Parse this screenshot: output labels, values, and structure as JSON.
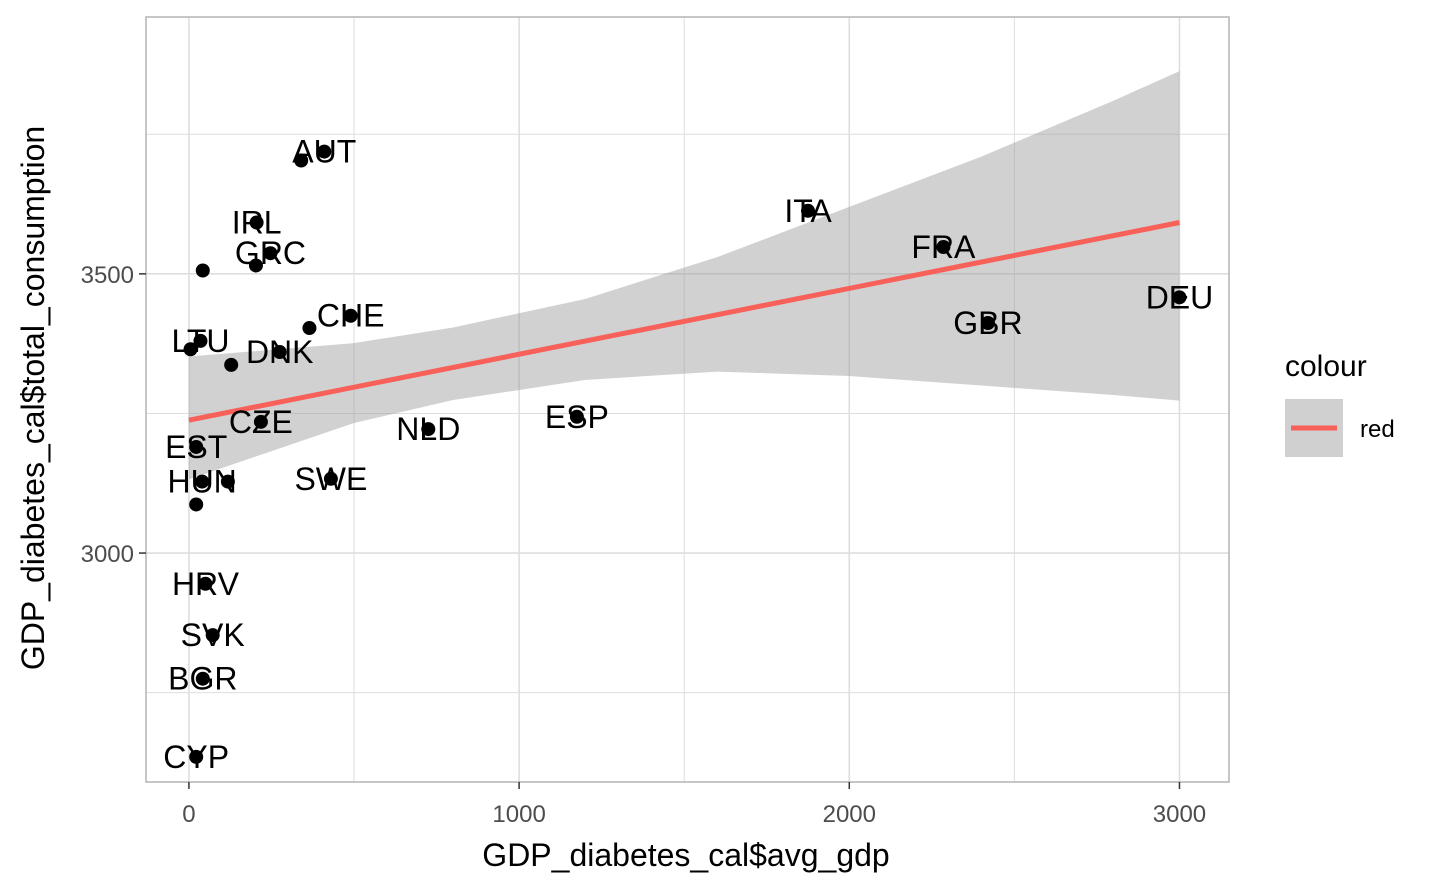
{
  "chart_data": {
    "type": "scatter",
    "xlabel": "GDP_diabetes_cal$avg_gdp",
    "ylabel": "GDP_diabetes_cal$total_consumption",
    "xlim": [
      -130,
      3150
    ],
    "ylim": [
      2590,
      3960
    ],
    "x_ticks": [
      0,
      1000,
      2000,
      3000
    ],
    "y_ticks": [
      3000,
      3500
    ],
    "x_tick_labels": [
      "0",
      "1000",
      "2000",
      "3000"
    ],
    "y_tick_labels": [
      "3000",
      "3500"
    ],
    "grid": true,
    "points": [
      {
        "label": "AUT",
        "x": 410,
        "y": 3719
      },
      {
        "label": "IRL",
        "x": 205,
        "y": 3592
      },
      {
        "label": "GRC",
        "x": 247,
        "y": 3537
      },
      {
        "label": "CHE",
        "x": 490,
        "y": 3425
      },
      {
        "label": "LTU",
        "x": 35,
        "y": 3380
      },
      {
        "label": "DNK",
        "x": 275,
        "y": 3360
      },
      {
        "label": "CZE",
        "x": 218,
        "y": 3235
      },
      {
        "label": "EST",
        "x": 22,
        "y": 3190
      },
      {
        "label": "HUN",
        "x": 40,
        "y": 3128
      },
      {
        "label": "SWE",
        "x": 430,
        "y": 3133
      },
      {
        "label": "NLD",
        "x": 725,
        "y": 3222
      },
      {
        "label": "ESP",
        "x": 1175,
        "y": 3244
      },
      {
        "label": "ITA",
        "x": 1875,
        "y": 3613
      },
      {
        "label": "FRA",
        "x": 2285,
        "y": 3548
      },
      {
        "label": "GBR",
        "x": 2420,
        "y": 3412
      },
      {
        "label": "DEU",
        "x": 3000,
        "y": 3458
      },
      {
        "label": "HRV",
        "x": 50,
        "y": 2945
      },
      {
        "label": "SVK",
        "x": 72,
        "y": 2853
      },
      {
        "label": "BGR",
        "x": 42,
        "y": 2775
      },
      {
        "label": "CYP",
        "x": 22,
        "y": 2635
      }
    ],
    "unlabeled_points": [
      {
        "x": 42,
        "y": 3506
      },
      {
        "x": 5,
        "y": 3365
      },
      {
        "x": 128,
        "y": 3337
      },
      {
        "x": 365,
        "y": 3403
      },
      {
        "x": 118,
        "y": 3128
      },
      {
        "x": 22,
        "y": 3087
      },
      {
        "x": 340,
        "y": 3703
      },
      {
        "x": 203,
        "y": 3515
      }
    ],
    "fit": {
      "x0": 0,
      "y0": 3238,
      "x1": 3000,
      "y1": 3592,
      "ci": [
        {
          "x": 0,
          "lo": 3132,
          "hi": 3352
        },
        {
          "x": 500,
          "lo": 3233,
          "hi": 3376
        },
        {
          "x": 800,
          "lo": 3274,
          "hi": 3404
        },
        {
          "x": 1200,
          "lo": 3310,
          "hi": 3455
        },
        {
          "x": 1600,
          "lo": 3325,
          "hi": 3530
        },
        {
          "x": 2000,
          "lo": 3317,
          "hi": 3620
        },
        {
          "x": 2400,
          "lo": 3300,
          "hi": 3710
        },
        {
          "x": 2800,
          "lo": 3283,
          "hi": 3810
        },
        {
          "x": 3000,
          "lo": 3273,
          "hi": 3863
        }
      ]
    },
    "legend": {
      "title": "colour",
      "label": "red",
      "position": "right"
    },
    "colors": {
      "fit_line": "#f8615a",
      "ci_band": "#999999",
      "points": "#000000",
      "grid": "#dedede",
      "panel_border": "#b3b3b3"
    }
  }
}
